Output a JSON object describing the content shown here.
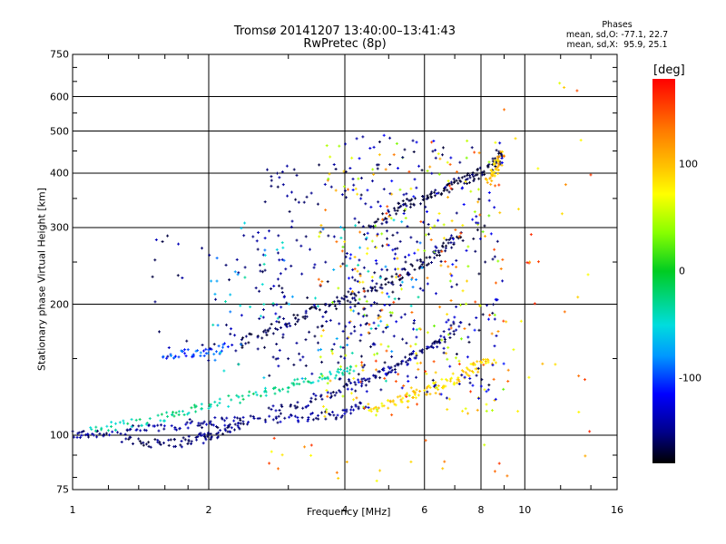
{
  "chart_data": {
    "type": "scatter",
    "title": "Tromsø 20141207 13:40:00–13:41:43",
    "subtitle": "RwPretec (8p)",
    "xlabel": "Frequency [MHz]",
    "ylabel": "Stationary phase Virtual Height [km]",
    "xscale": "log",
    "yscale": "log",
    "xlim": [
      1,
      16
    ],
    "ylim": [
      75,
      750
    ],
    "xticks": [
      1,
      2,
      4,
      6,
      8,
      10,
      16
    ],
    "yticks": [
      75,
      100,
      200,
      300,
      400,
      500,
      600,
      750
    ],
    "x_gridlines": [
      2,
      4,
      6,
      8,
      10
    ],
    "y_gridlines": [
      100,
      200,
      300,
      400,
      500,
      600
    ],
    "grid": true,
    "phase_stats": {
      "heading": "Phases",
      "line_o": "mean, sd,O: -77.1, 22.7",
      "line_x": "mean, sd,X:  95.9, 25.1"
    },
    "colorbar": {
      "label": "[deg]",
      "ticks": [
        100,
        0,
        -100
      ],
      "range": [
        -180,
        180
      ],
      "colors": [
        "#ff0000",
        "#ff7700",
        "#ffff00",
        "#00cc22",
        "#00dddd",
        "#0000ff",
        "#000000"
      ]
    },
    "traces": [
      {
        "x": [
          1.0,
          1.1,
          1.3,
          1.5,
          1.8,
          2.0,
          2.3,
          2.7,
          3.2,
          3.7,
          4.1,
          4.5
        ],
        "y": [
          100,
          101,
          102,
          104,
          106,
          107,
          108,
          109,
          110,
          111,
          114,
          118
        ],
        "phase": -150
      },
      {
        "x": [
          1.3,
          1.5,
          1.7,
          1.9,
          2.0,
          2.2,
          2.4
        ],
        "y": [
          97,
          96,
          96,
          98,
          100,
          103,
          107
        ],
        "phase": -160
      },
      {
        "x": [
          1.1,
          1.3,
          1.6,
          1.8,
          2.1,
          2.5,
          2.9,
          3.3,
          3.8,
          4.2
        ],
        "y": [
          103,
          106,
          110,
          114,
          118,
          124,
          128,
          133,
          138,
          142
        ],
        "phase": -30
      },
      {
        "x": [
          1.6,
          1.8,
          2.0,
          2.2
        ],
        "y": [
          150,
          154,
          156,
          160
        ],
        "phase": -100
      },
      {
        "x": [
          2.3,
          2.6,
          3.0,
          3.4,
          3.8,
          4.3,
          4.8,
          5.3,
          5.8,
          6.3,
          6.8,
          7.3
        ],
        "y": [
          160,
          172,
          182,
          192,
          200,
          210,
          220,
          232,
          245,
          260,
          275,
          290
        ],
        "phase": -170
      },
      {
        "x": [
          2.7,
          3.2,
          3.7,
          4.2,
          4.7,
          5.2,
          5.7,
          6.2,
          6.7,
          7.2
        ],
        "y": [
          113,
          118,
          124,
          130,
          138,
          145,
          152,
          160,
          170,
          180
        ],
        "phase": -155
      },
      {
        "x": [
          4.5,
          5.0,
          5.5,
          6.0,
          6.5,
          7.0,
          7.5,
          8.0,
          8.5
        ],
        "y": [
          115,
          118,
          122,
          126,
          130,
          135,
          140,
          145,
          150
        ],
        "phase": 90
      },
      {
        "x": [
          4.5,
          5.0,
          5.5,
          6.0,
          6.5,
          7.0,
          7.5,
          8.0,
          8.6,
          8.8
        ],
        "y": [
          300,
          320,
          340,
          350,
          360,
          380,
          390,
          400,
          420,
          450
        ],
        "phase": -175
      },
      {
        "x": [
          8.3,
          8.5,
          8.7,
          8.9
        ],
        "y": [
          380,
          400,
          420,
          440
        ],
        "phase": 100
      }
    ],
    "scatter_regions": [
      {
        "x_range": [
          1.5,
          3.5
        ],
        "y_range": [
          140,
          300
        ],
        "phase_range": [
          -175,
          -130
        ],
        "count": 60
      },
      {
        "x_range": [
          2.5,
          5.5
        ],
        "y_range": [
          130,
          420
        ],
        "phase_range": [
          -175,
          -140
        ],
        "count": 180
      },
      {
        "x_range": [
          3.5,
          9.0
        ],
        "y_range": [
          110,
          480
        ],
        "phase_range": [
          30,
          160
        ],
        "count": 260
      },
      {
        "x_range": [
          4.0,
          9.0
        ],
        "y_range": [
          120,
          500
        ],
        "phase_range": [
          -180,
          -110
        ],
        "count": 220
      },
      {
        "x_range": [
          2.0,
          6.0
        ],
        "y_range": [
          130,
          330
        ],
        "phase_range": [
          -90,
          -30
        ],
        "count": 80
      },
      {
        "x_range": [
          9.0,
          14.0
        ],
        "y_range": [
          80,
          650
        ],
        "phase_range": [
          60,
          170
        ],
        "count": 35
      },
      {
        "x_range": [
          2.5,
          9.0
        ],
        "y_range": [
          76,
          100
        ],
        "phase_range": [
          60,
          160
        ],
        "count": 20
      }
    ]
  }
}
